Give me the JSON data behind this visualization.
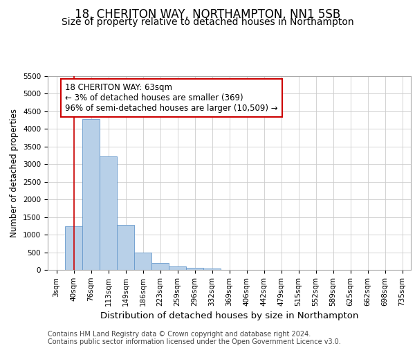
{
  "title1": "18, CHERITON WAY, NORTHAMPTON, NN1 5SB",
  "title2": "Size of property relative to detached houses in Northampton",
  "xlabel": "Distribution of detached houses by size in Northampton",
  "ylabel": "Number of detached properties",
  "categories": [
    "3sqm",
    "40sqm",
    "76sqm",
    "113sqm",
    "149sqm",
    "186sqm",
    "223sqm",
    "259sqm",
    "296sqm",
    "332sqm",
    "369sqm",
    "406sqm",
    "442sqm",
    "479sqm",
    "515sqm",
    "552sqm",
    "589sqm",
    "625sqm",
    "662sqm",
    "698sqm",
    "735sqm"
  ],
  "values": [
    0,
    1230,
    4280,
    3220,
    1280,
    490,
    200,
    100,
    60,
    30,
    0,
    0,
    0,
    0,
    0,
    0,
    0,
    0,
    0,
    0,
    0
  ],
  "bar_color": "#b8d0e8",
  "bar_edge_color": "#6699cc",
  "vline_x": 1,
  "vline_color": "#cc0000",
  "annotation_line1": "18 CHERITON WAY: 63sqm",
  "annotation_line2": "← 3% of detached houses are smaller (369)",
  "annotation_line3": "96% of semi-detached houses are larger (10,509) →",
  "box_edge_color": "#cc0000",
  "ylim": [
    0,
    5500
  ],
  "yticks": [
    0,
    500,
    1000,
    1500,
    2000,
    2500,
    3000,
    3500,
    4000,
    4500,
    5000,
    5500
  ],
  "footer1": "Contains HM Land Registry data © Crown copyright and database right 2024.",
  "footer2": "Contains public sector information licensed under the Open Government Licence v3.0.",
  "bg_color": "#ffffff",
  "grid_color": "#cccccc",
  "title1_fontsize": 12,
  "title2_fontsize": 10,
  "xlabel_fontsize": 9.5,
  "ylabel_fontsize": 8.5,
  "tick_fontsize": 7.5,
  "annotation_fontsize": 8.5,
  "footer_fontsize": 7
}
